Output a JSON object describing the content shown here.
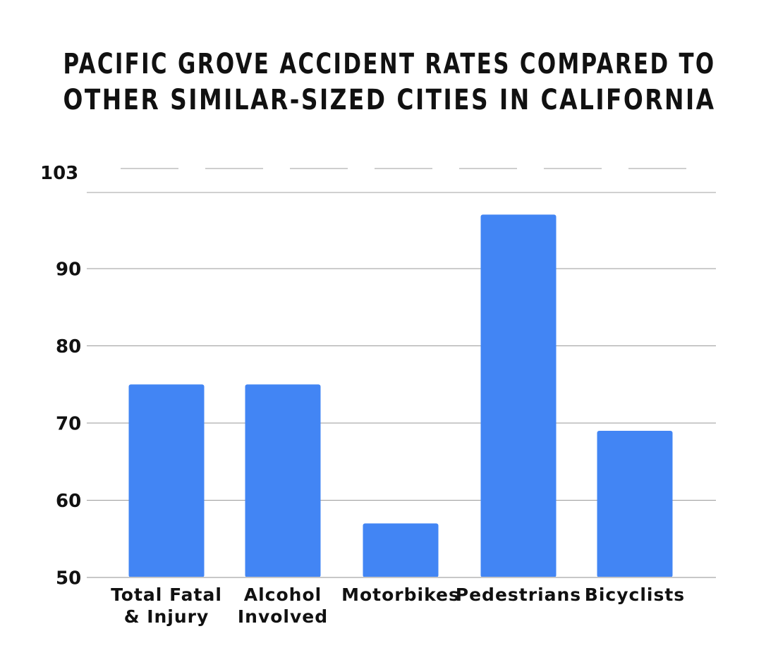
{
  "chart_data": {
    "type": "bar",
    "title_lines": [
      "PACIFIC GROVE ACCIDENT RATES COMPARED TO",
      "OTHER SIMILAR-SIZED CITIES IN CALIFORNIA"
    ],
    "categories": [
      [
        "Total Fatal",
        "& Injury"
      ],
      [
        "Alcohol",
        "Involved"
      ],
      [
        "Motorbikes"
      ],
      [
        "Pedestrians"
      ],
      [
        "Bicyclists"
      ]
    ],
    "values": [
      75,
      75,
      57,
      97,
      69
    ],
    "ylim": [
      50,
      103
    ],
    "yticks": [
      50,
      60,
      70,
      80,
      90,
      103
    ],
    "bar_color": "#4285f4",
    "grid": true
  }
}
